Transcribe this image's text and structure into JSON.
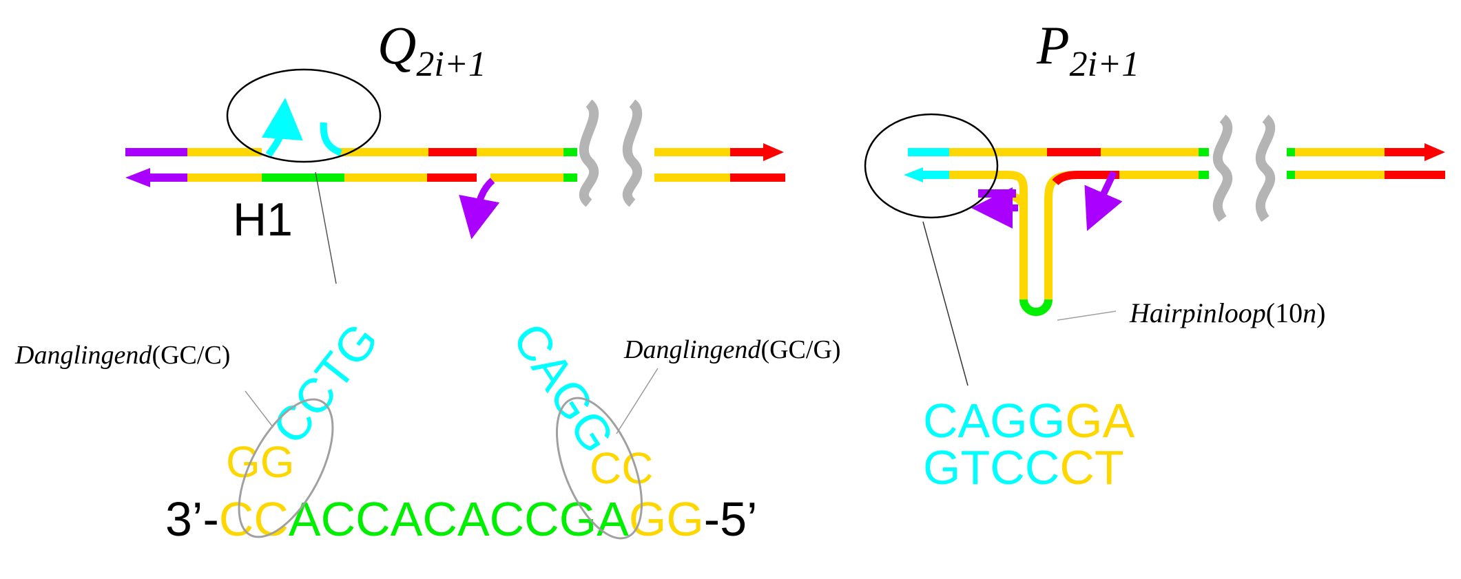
{
  "colors": {
    "yellow": "#FFD700",
    "red": "#FF0000",
    "green": "#00EE00",
    "purple": "#AA00FF",
    "cyan": "#00FFFF",
    "gray": "#B4B4B4",
    "black": "#000000"
  },
  "left_panel": {
    "title_main": "Q",
    "title_sub": "2i+1",
    "domain_label": "H1",
    "dangling_left": {
      "prefix": "Danglingend",
      "args": "(GC/C)"
    },
    "dangling_right": {
      "prefix": "Danglingend",
      "args": "(GC/G)"
    },
    "seq_left_top": "CCTG",
    "seq_right_top": "CAGG",
    "seq_left_pair": "GG",
    "seq_right_pair": "CC",
    "bottom_seq": {
      "end3": "3’-",
      "yellow_left": "CC",
      "green_mid": "ACCACACCGA",
      "yellow_right": "GG",
      "end5": "-5’"
    }
  },
  "right_panel": {
    "title_main": "P",
    "title_sub": "2i+1",
    "hairpin_label": {
      "prefix": "Hairpinloop",
      "args": "(10",
      "italic_n": "n",
      "close": ")"
    },
    "seq_top": {
      "cyan": "CAGG",
      "yellow": "GA"
    },
    "seq_bottom": {
      "cyan": "GTCC",
      "yellow": "CT"
    }
  }
}
